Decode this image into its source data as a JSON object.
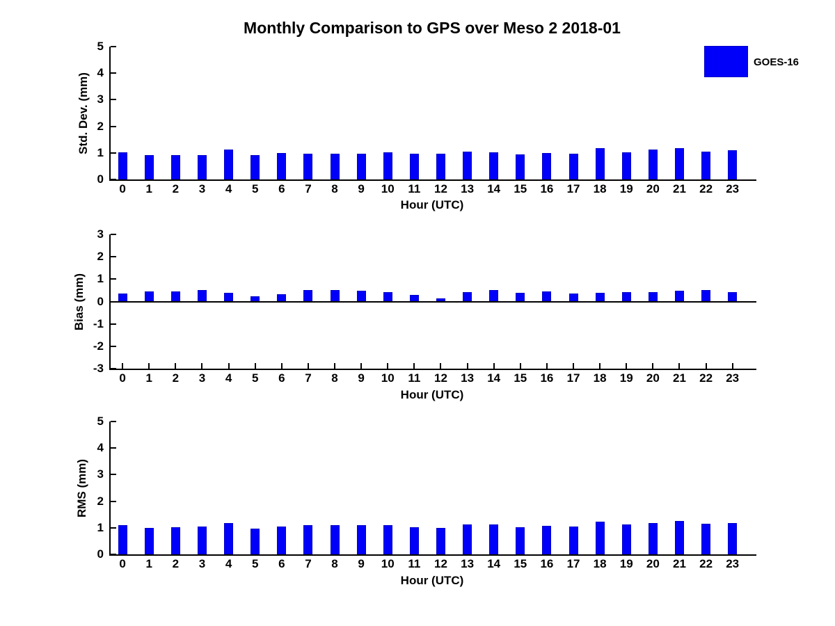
{
  "title": "Monthly Comparison to GPS over Meso 2 2018-01",
  "legend": {
    "label": "GOES-16",
    "position": "top-right"
  },
  "colors": {
    "bar": "#0000FA",
    "bar_edge": "#0000C8",
    "axis": "#000000",
    "text": "#000000",
    "background": "#FFFFFF"
  },
  "chart_data": [
    {
      "type": "bar",
      "panel": "top",
      "categories": [
        0,
        1,
        2,
        3,
        4,
        5,
        6,
        7,
        8,
        9,
        10,
        11,
        12,
        13,
        14,
        15,
        16,
        17,
        18,
        19,
        20,
        21,
        22,
        23
      ],
      "series": [
        {
          "name": "GOES-16",
          "values": [
            1.02,
            0.92,
            0.92,
            0.92,
            1.13,
            0.92,
            0.99,
            0.97,
            0.96,
            0.97,
            1.02,
            0.97,
            0.96,
            1.05,
            1.01,
            0.94,
            0.99,
            0.97,
            1.17,
            1.03,
            1.12,
            1.17,
            1.05,
            1.11
          ]
        }
      ],
      "xlabel": "Hour (UTC)",
      "ylabel": "Std. Dev. (mm)",
      "ylim": [
        0,
        5
      ],
      "yticks": [
        0,
        1,
        2,
        3,
        4,
        5
      ],
      "xlim": [
        -0.45,
        23.9
      ],
      "grid": false,
      "zero_line": false
    },
    {
      "type": "bar",
      "panel": "middle",
      "categories": [
        0,
        1,
        2,
        3,
        4,
        5,
        6,
        7,
        8,
        9,
        10,
        11,
        12,
        13,
        14,
        15,
        16,
        17,
        18,
        19,
        20,
        21,
        22,
        23
      ],
      "series": [
        {
          "name": "GOES-16",
          "values": [
            0.35,
            0.45,
            0.45,
            0.5,
            0.4,
            0.22,
            0.33,
            0.51,
            0.51,
            0.48,
            0.43,
            0.28,
            0.15,
            0.42,
            0.5,
            0.38,
            0.45,
            0.35,
            0.39,
            0.43,
            0.43,
            0.47,
            0.5,
            0.42
          ]
        }
      ],
      "xlabel": "Hour (UTC)",
      "ylabel": "Bias (mm)",
      "ylim": [
        -3,
        3
      ],
      "yticks": [
        -3,
        -2,
        -1,
        0,
        1,
        2,
        3
      ],
      "xlim": [
        -0.45,
        23.9
      ],
      "grid": false,
      "zero_line": true
    },
    {
      "type": "bar",
      "panel": "bottom",
      "categories": [
        0,
        1,
        2,
        3,
        4,
        5,
        6,
        7,
        8,
        9,
        10,
        11,
        12,
        13,
        14,
        15,
        16,
        17,
        18,
        19,
        20,
        21,
        22,
        23
      ],
      "series": [
        {
          "name": "GOES-16",
          "values": [
            1.1,
            1.0,
            1.01,
            1.04,
            1.19,
            0.96,
            1.04,
            1.09,
            1.09,
            1.09,
            1.1,
            1.01,
            0.99,
            1.12,
            1.12,
            1.02,
            1.07,
            1.05,
            1.24,
            1.13,
            1.18,
            1.26,
            1.15,
            1.18
          ]
        }
      ],
      "xlabel": "Hour (UTC)",
      "ylabel": "RMS (mm)",
      "ylim": [
        0,
        5
      ],
      "yticks": [
        0,
        1,
        2,
        3,
        4,
        5
      ],
      "xlim": [
        -0.45,
        23.9
      ],
      "grid": false,
      "zero_line": false
    }
  ]
}
